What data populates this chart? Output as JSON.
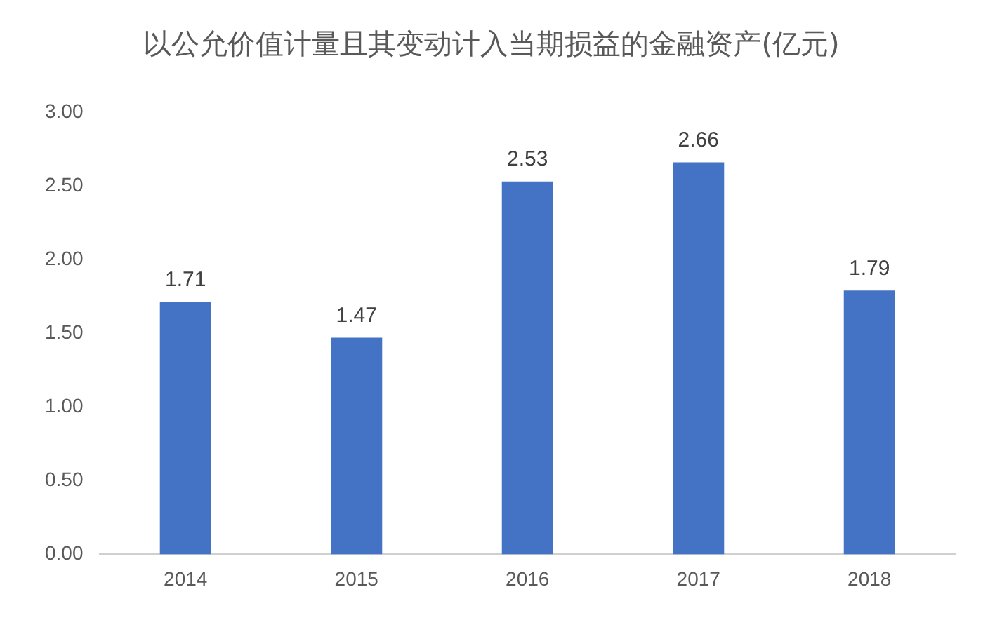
{
  "chart_data": {
    "type": "bar",
    "title": "以公允价值计量且其变动计入当期损益的金融资产(亿元)",
    "categories": [
      "2014",
      "2015",
      "2016",
      "2017",
      "2018"
    ],
    "values": [
      1.71,
      1.47,
      2.53,
      2.66,
      1.79
    ],
    "color": "#4472c4",
    "ylim": [
      0,
      3
    ],
    "yticks": [
      {
        "value": 0,
        "label": "0.00"
      },
      {
        "value": 0.5,
        "label": "0.50"
      },
      {
        "value": 1,
        "label": "1.00"
      },
      {
        "value": 1.5,
        "label": "1.50"
      },
      {
        "value": 2,
        "label": "2.00"
      },
      {
        "value": 2.5,
        "label": "2.50"
      },
      {
        "value": 3,
        "label": "3.00"
      }
    ],
    "grid": false,
    "legend": false,
    "data_labels": true
  }
}
